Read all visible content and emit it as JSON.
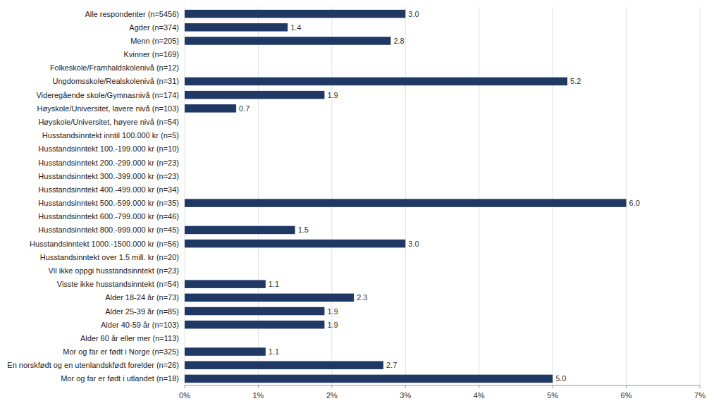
{
  "chart_data": {
    "type": "bar",
    "orientation": "horizontal",
    "categories": [
      "Alle respondenter (n=5456)",
      "Agder (n=374)",
      "Menn (n=205)",
      "Kvinner (n=169)",
      "Folkeskole/Framhaldskolenivå (n=12)",
      "Ungdomsskole/Realskolenivå (n=31)",
      "Videregående skole/Gymnasnivå (n=174)",
      "Høyskole/Universitet, lavere nivå (n=103)",
      "Høyskole/Universitet, høyere nivå (n=54)",
      "Husstandsinntekt inntil 100.000 kr (n=5)",
      "Husstandsinntekt 100.-199.000 kr (n=10)",
      "Husstandsinntekt 200.-299.000 kr (n=23)",
      "Husstandsinntekt 300.-399.000 kr (n=23)",
      "Husstandsinntekt 400.-499.000 kr (n=34)",
      "Husstandsinntekt 500.-599.000 kr (n=35)",
      "Husstandsinntekt 600.-799.000 kr (n=46)",
      "Husstandsinntekt 800.-999.000 kr (n=45)",
      "Husstandsinntekt 1000.-1500.000 kr (n=56)",
      "Husstandsinntekt over 1.5 mill. kr (n=20)",
      "Vil ikke oppgi husstandsinntekt (n=23)",
      "Visste ikke husstandsinntekt (n=54)",
      "Alder 18-24 år (n=73)",
      "Alder 25-39 år (n=85)",
      "Alder 40-59 år (n=103)",
      "Alder 60 år eller mer (n=113)",
      "Mor og far er født i Norge (n=325)",
      "En norskfødt og en utenlandskfødt forelder (n=26)",
      "Mor og far er født i utlandet (n=18)"
    ],
    "values": [
      3.0,
      1.4,
      2.8,
      0.0,
      0.0,
      5.2,
      1.9,
      0.7,
      0.0,
      0.0,
      0.0,
      0.0,
      0.0,
      0.0,
      6.0,
      0.0,
      1.5,
      3.0,
      0.0,
      0.0,
      1.1,
      2.3,
      1.9,
      1.9,
      0.0,
      1.1,
      2.7,
      5.0
    ],
    "value_labels": [
      "3.0",
      "1.4",
      "2.8",
      null,
      null,
      "5.2",
      "1.9",
      "0.7",
      null,
      null,
      null,
      null,
      null,
      null,
      "6.0",
      null,
      "1.5",
      "3.0",
      null,
      null,
      "1.1",
      "2.3",
      "1.9",
      "1.9",
      null,
      "1.1",
      "2.7",
      "5.0"
    ],
    "data_labels": true,
    "color": "#1f3864",
    "xlim": [
      0,
      7
    ],
    "xticks": [
      {
        "value": 0,
        "label": "0%"
      },
      {
        "value": 1,
        "label": "1%"
      },
      {
        "value": 2,
        "label": "2%"
      },
      {
        "value": 3,
        "label": "3%"
      },
      {
        "value": 4,
        "label": "4%"
      },
      {
        "value": 5,
        "label": "5%"
      },
      {
        "value": 6,
        "label": "6%"
      },
      {
        "value": 7,
        "label": "7%"
      }
    ],
    "grid": true
  }
}
